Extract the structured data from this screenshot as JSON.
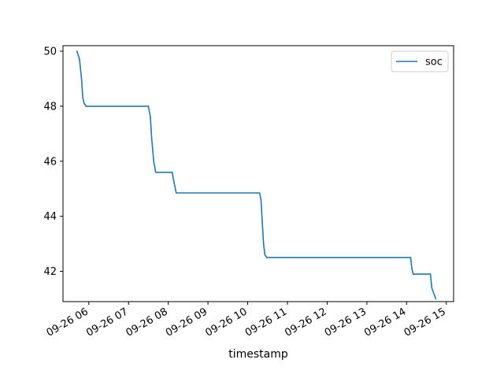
{
  "chart_data": {
    "type": "line",
    "title": "",
    "xlabel": "timestamp",
    "ylabel": "",
    "grid": false,
    "legend_placement": "top-right",
    "x_ticks": [
      "09-26 06",
      "09-26 07",
      "09-26 08",
      "09-26 09",
      "09-26 10",
      "09-26 11",
      "09-26 12",
      "09-26 13",
      "09-26 14",
      "09-26 15"
    ],
    "y_ticks": [
      "42",
      "44",
      "46",
      "48",
      "50"
    ],
    "xlim": [
      "09-26 05:21",
      "09-26 15:11"
    ],
    "ylim": [
      40.9,
      50.2
    ],
    "series": [
      {
        "name": "soc",
        "color": "#1f77b4",
        "x": [
          "09-26 05:42",
          "09-26 05:46",
          "09-26 05:49",
          "09-26 05:51",
          "09-26 05:53",
          "09-26 05:56",
          "09-26 07:30",
          "09-26 07:33",
          "09-26 07:35",
          "09-26 07:38",
          "09-26 07:41",
          "09-26 08:06",
          "09-26 08:09",
          "09-26 08:12",
          "09-26 10:18",
          "09-26 10:20",
          "09-26 10:22",
          "09-26 10:24",
          "09-26 10:26",
          "09-26 10:29",
          "09-26 14:06",
          "09-26 14:08",
          "09-26 14:10",
          "09-26 14:36",
          "09-26 14:38",
          "09-26 14:41",
          "09-26 14:44"
        ],
        "values": [
          50.0,
          49.7,
          49.0,
          48.3,
          48.1,
          48.0,
          48.0,
          47.6,
          46.8,
          46.0,
          45.6,
          45.6,
          45.2,
          44.85,
          44.85,
          44.6,
          43.8,
          43.0,
          42.6,
          42.5,
          42.5,
          42.1,
          41.9,
          41.9,
          41.4,
          41.2,
          41.0
        ]
      }
    ]
  }
}
